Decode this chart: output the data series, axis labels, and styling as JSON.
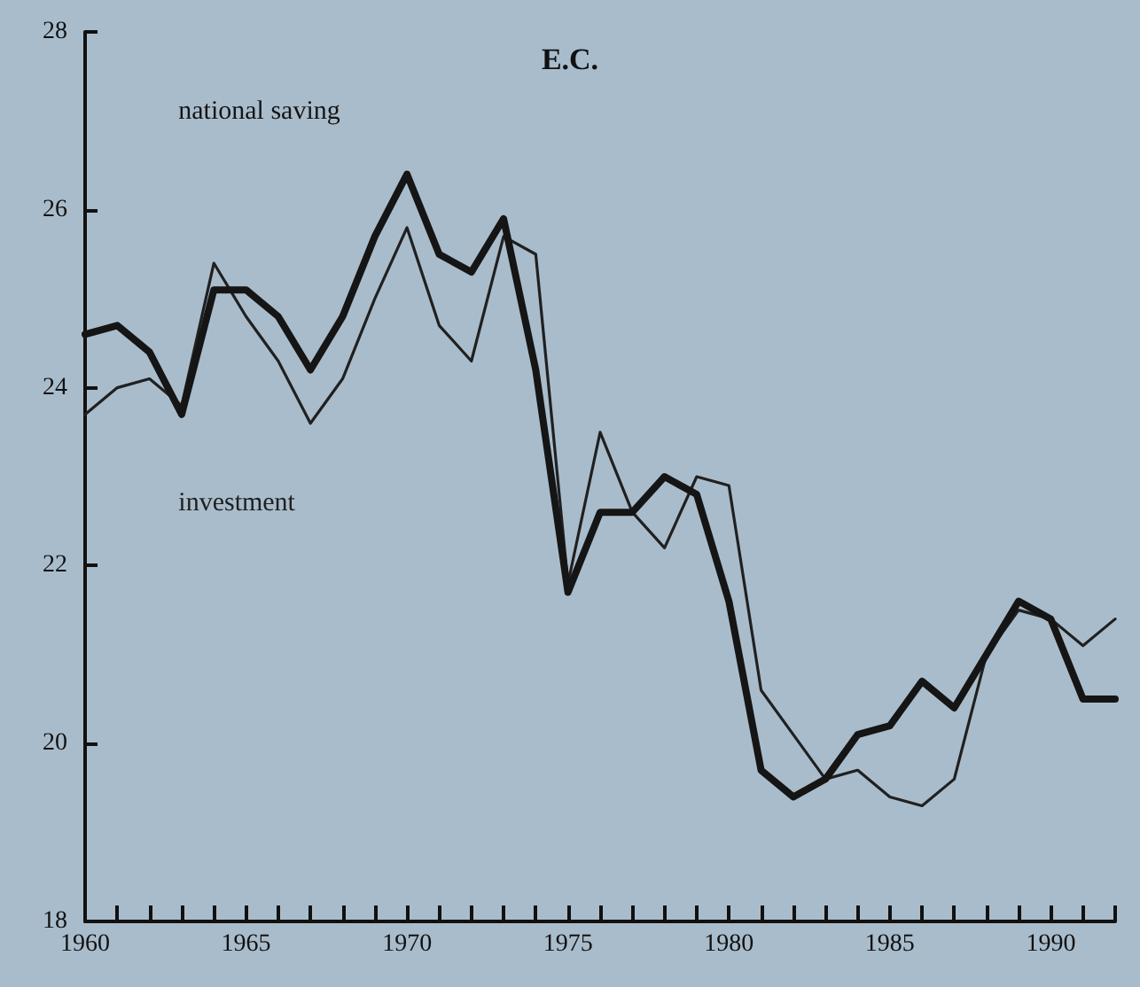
{
  "chart_data": {
    "type": "line",
    "title": "E.C.",
    "x": [
      1960,
      1961,
      1962,
      1963,
      1964,
      1965,
      1966,
      1967,
      1968,
      1969,
      1970,
      1971,
      1972,
      1973,
      1974,
      1975,
      1976,
      1977,
      1978,
      1979,
      1980,
      1981,
      1982,
      1983,
      1984,
      1985,
      1986,
      1987,
      1988,
      1989,
      1990,
      1991,
      1992
    ],
    "series": [
      {
        "name": "national saving",
        "color": "#151515",
        "values": [
          24.6,
          24.7,
          24.4,
          23.7,
          25.1,
          25.1,
          24.8,
          24.2,
          24.8,
          25.7,
          26.4,
          25.5,
          25.3,
          25.9,
          24.2,
          21.7,
          22.6,
          22.6,
          23.0,
          22.8,
          21.6,
          19.7,
          19.4,
          19.6,
          20.1,
          20.2,
          20.7,
          20.4,
          21.0,
          21.6,
          21.4,
          20.5,
          20.5
        ]
      },
      {
        "name": "investment",
        "color": "#202020",
        "values": [
          23.7,
          24.0,
          24.1,
          23.8,
          25.4,
          24.8,
          24.3,
          23.6,
          24.1,
          25.0,
          25.8,
          24.7,
          24.3,
          25.7,
          25.5,
          21.8,
          23.5,
          22.6,
          22.2,
          23.0,
          22.9,
          20.6,
          20.1,
          19.6,
          19.7,
          19.4,
          19.3,
          19.6,
          21.0,
          21.5,
          21.4,
          21.1,
          21.4
        ]
      }
    ],
    "xlim": [
      1960,
      1992
    ],
    "xticks": [
      1960,
      {
        "value": 1961,
        "label": null
      },
      {
        "value": 1962,
        "label": null
      },
      {
        "value": 1963,
        "label": null
      },
      {
        "value": 1964,
        "label": null
      },
      1965,
      {
        "value": 1966,
        "label": null
      },
      {
        "value": 1967,
        "label": null
      },
      {
        "value": 1968,
        "label": null
      },
      {
        "value": 1969,
        "label": null
      },
      1970,
      {
        "value": 1971,
        "label": null
      },
      {
        "value": 1972,
        "label": null
      },
      {
        "value": 1973,
        "label": null
      },
      {
        "value": 1974,
        "label": null
      },
      1975,
      {
        "value": 1976,
        "label": null
      },
      {
        "value": 1977,
        "label": null
      },
      {
        "value": 1978,
        "label": null
      },
      {
        "value": 1979,
        "label": null
      },
      1980,
      {
        "value": 1981,
        "label": null
      },
      {
        "value": 1982,
        "label": null
      },
      {
        "value": 1983,
        "label": null
      },
      {
        "value": 1984,
        "label": null
      },
      1985,
      {
        "value": 1986,
        "label": null
      },
      {
        "value": 1987,
        "label": null
      },
      {
        "value": 1988,
        "label": null
      },
      {
        "value": 1989,
        "label": null
      },
      1990,
      {
        "value": 1991,
        "label": null
      },
      {
        "value": 1992,
        "label": null
      }
    ],
    "ylim": [
      18,
      28
    ],
    "yticks": [
      18,
      20,
      22,
      24,
      26,
      28
    ],
    "grid": false,
    "legend": false,
    "marker": "none",
    "line_style": "solid"
  }
}
